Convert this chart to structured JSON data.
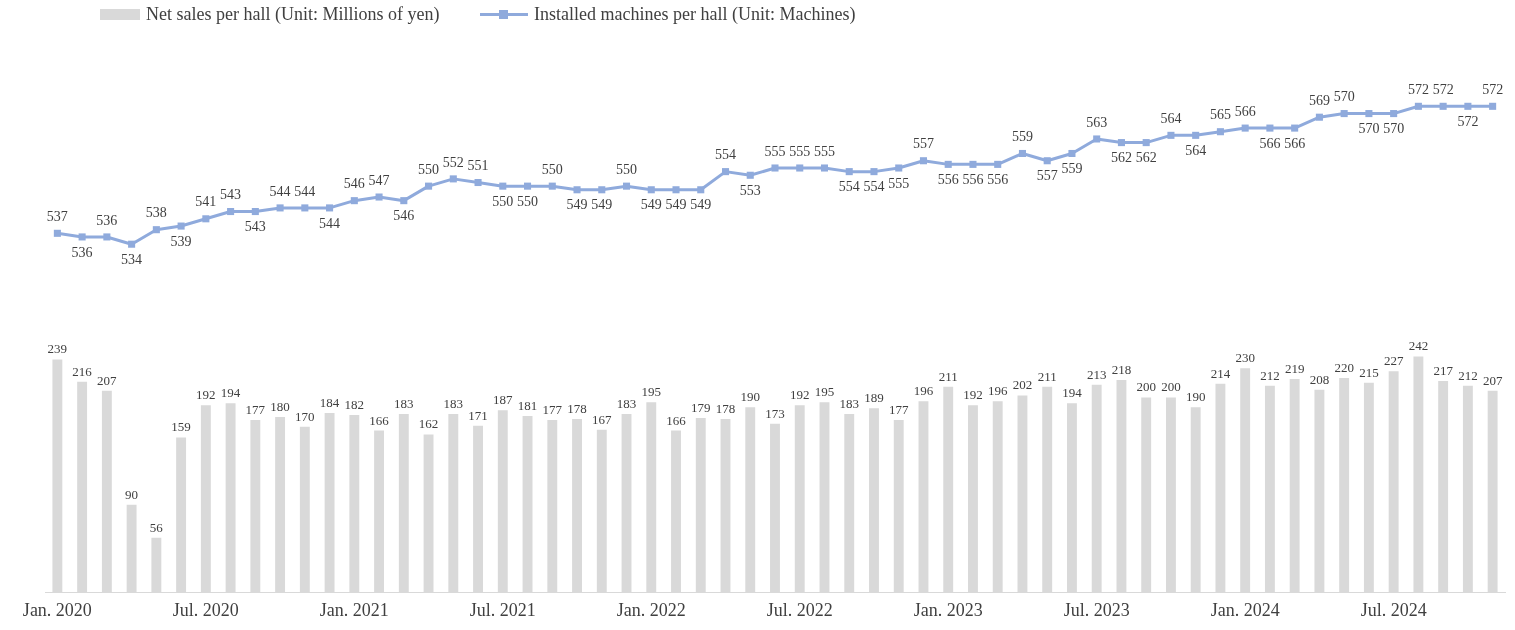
{
  "chart_data": [
    {
      "type": "line",
      "categories": [
        null,
        null,
        null,
        null,
        null,
        null,
        null,
        null,
        null,
        null,
        null,
        null,
        null,
        null,
        null,
        null,
        null,
        null,
        null,
        null,
        null,
        null,
        null,
        null,
        null,
        null,
        null,
        null,
        null,
        null,
        null,
        null,
        null,
        null,
        null,
        null,
        null,
        null,
        null,
        null,
        null,
        null,
        null,
        null,
        null,
        null,
        null,
        null,
        null,
        null,
        null,
        null,
        null,
        null,
        null,
        null,
        null,
        null,
        null
      ],
      "series": [
        {
          "name": "Installed machines per hall (Unit: Machines)",
          "color": "#8faadc",
          "values": [
            537,
            536,
            536,
            534,
            538,
            539,
            541,
            543,
            543,
            544,
            544,
            544,
            546,
            547,
            546,
            550,
            552,
            551,
            550,
            550,
            550,
            549,
            549,
            550,
            549,
            549,
            549,
            554,
            553,
            555,
            555,
            555,
            554,
            554,
            555,
            557,
            556,
            556,
            556,
            559,
            557,
            559,
            563,
            562,
            562,
            564,
            564,
            565,
            566,
            566,
            566,
            569,
            570,
            570,
            570,
            572,
            572,
            572,
            572
          ]
        }
      ],
      "tick_labels": false,
      "legend": "top",
      "marker": "square",
      "line_style": "solid",
      "data_labels": true
    },
    {
      "type": "bar",
      "categories": [
        "Jan. 2020",
        null,
        null,
        null,
        null,
        null,
        "Jul. 2020",
        null,
        null,
        null,
        null,
        null,
        "Jan. 2021",
        null,
        null,
        null,
        null,
        null,
        "Jul. 2021",
        null,
        null,
        null,
        null,
        null,
        "Jan. 2022",
        null,
        null,
        null,
        null,
        null,
        "Jul. 2022",
        null,
        null,
        null,
        null,
        null,
        "Jan. 2023",
        null,
        null,
        null,
        null,
        null,
        "Jul. 2023",
        null,
        null,
        null,
        null,
        null,
        "Jan. 2024",
        null,
        null,
        null,
        null,
        null,
        "Jul. 2024",
        null,
        null,
        null,
        null
      ],
      "series": [
        {
          "name": "Net sales per hall (Unit: Millions of yen)",
          "color": "#d9d9d9",
          "values": [
            239,
            216,
            207,
            90,
            56,
            159,
            192,
            194,
            177,
            180,
            170,
            184,
            182,
            166,
            183,
            162,
            183,
            171,
            187,
            181,
            177,
            178,
            167,
            183,
            195,
            166,
            179,
            178,
            190,
            173,
            192,
            195,
            183,
            189,
            177,
            196,
            211,
            192,
            196,
            202,
            211,
            194,
            213,
            218,
            200,
            200,
            190,
            214,
            230,
            212,
            219,
            208,
            220,
            215,
            227,
            242,
            217,
            212,
            207
          ]
        }
      ],
      "tick_labels": "x",
      "legend": "top left",
      "data_labels": true
    }
  ]
}
